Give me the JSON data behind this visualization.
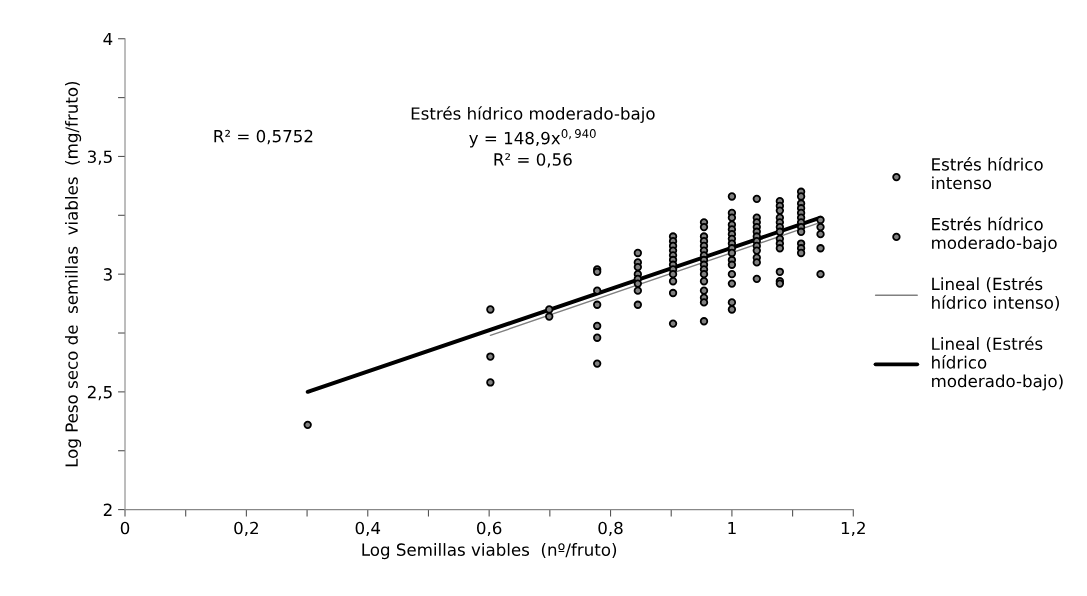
{
  "chart_data": {
    "type": "scatter",
    "xlabel": "Log Semillas viables  (nº/fruto)",
    "ylabel": "Log Peso seco de  semillas  viables  (mg/fruto)",
    "xlim": [
      0,
      1.2
    ],
    "ylim": [
      2,
      4
    ],
    "xticks": [
      0,
      {
        "value": 0.1,
        "label": null
      },
      {
        "value": 0.2,
        "label": "0,2"
      },
      {
        "value": 0.3,
        "label": null
      },
      {
        "value": 0.4,
        "label": "0,4"
      },
      {
        "value": 0.5,
        "label": null
      },
      {
        "value": 0.6,
        "label": "0,6"
      },
      {
        "value": 0.7,
        "label": null
      },
      {
        "value": 0.8,
        "label": "0,8"
      },
      {
        "value": 0.9,
        "label": null
      },
      1,
      {
        "value": 1.1,
        "label": null
      },
      {
        "value": 1.2,
        "label": "1,2"
      }
    ],
    "yticks": [
      2,
      {
        "value": 2.25,
        "label": null
      },
      {
        "value": 2.5,
        "label": "2,5"
      },
      {
        "value": 2.75,
        "label": null
      },
      3,
      {
        "value": 3.25,
        "label": null
      },
      {
        "value": 3.5,
        "label": "3,5"
      },
      {
        "value": 3.75,
        "label": null
      },
      4
    ],
    "grid": false,
    "legend": "right",
    "annotations": [
      "R² = 0,5752",
      "Estrés hídrico moderado-bajo\ny = 148,9x$^{0,940}$\nR² = 0,56"
    ],
    "series": [
      {
        "name": "Estrés hídrico\nintenso",
        "marker": "circle",
        "color": "#808080",
        "x": [
          0.602,
          0.602,
          0.602,
          0.699,
          0.699,
          0.778,
          0.778,
          0.778,
          0.778,
          0.778,
          0.778,
          0.778,
          0.845,
          0.845,
          0.845,
          0.845,
          0.845,
          0.845,
          0.845,
          0.845,
          0.903,
          0.903,
          0.903,
          0.903,
          0.903,
          0.903,
          0.903,
          0.903,
          0.903,
          0.903,
          0.903,
          0.903
        ],
        "values": [
          2.85,
          2.65,
          2.54,
          2.85,
          2.82,
          3.02,
          3.01,
          2.93,
          2.87,
          2.78,
          2.73,
          2.62,
          3.09,
          3.05,
          3.03,
          3.0,
          2.98,
          2.96,
          2.93,
          2.87,
          3.16,
          3.14,
          3.12,
          3.1,
          3.08,
          3.06,
          3.04,
          3.02,
          3.0,
          2.97,
          2.92,
          2.79
        ]
      },
      {
        "name": "Estrés hídrico\nmoderado-bajo",
        "marker": "circle",
        "color": "#808080",
        "x": [
          0.301,
          0.954,
          0.954,
          0.954,
          0.954,
          0.954,
          0.954,
          0.954,
          0.954,
          0.954,
          0.954,
          0.954,
          0.954,
          0.954,
          0.954,
          0.954,
          0.954,
          1.0,
          1.0,
          1.0,
          1.0,
          1.0,
          1.0,
          1.0,
          1.0,
          1.0,
          1.0,
          1.0,
          1.0,
          1.0,
          1.0,
          1.0,
          1.0,
          1.041,
          1.041,
          1.041,
          1.041,
          1.041,
          1.041,
          1.041,
          1.041,
          1.041,
          1.041,
          1.041,
          1.041,
          1.079,
          1.079,
          1.079,
          1.079,
          1.079,
          1.079,
          1.079,
          1.079,
          1.079,
          1.079,
          1.079,
          1.079,
          1.079,
          1.114,
          1.114,
          1.114,
          1.114,
          1.114,
          1.114,
          1.114,
          1.114,
          1.114,
          1.114,
          1.114,
          1.114,
          1.146,
          1.146,
          1.146,
          1.146,
          1.146
        ],
        "values": [
          2.36,
          3.22,
          3.2,
          3.16,
          3.14,
          3.12,
          3.1,
          3.08,
          3.06,
          3.04,
          3.02,
          3.0,
          2.97,
          2.93,
          2.9,
          2.88,
          2.8,
          3.33,
          3.26,
          3.24,
          3.21,
          3.19,
          3.17,
          3.15,
          3.13,
          3.11,
          3.09,
          3.06,
          3.04,
          3.0,
          2.96,
          2.88,
          2.85,
          3.32,
          3.24,
          3.22,
          3.2,
          3.18,
          3.16,
          3.14,
          3.12,
          3.1,
          3.07,
          3.05,
          2.98,
          3.31,
          3.29,
          3.27,
          3.24,
          3.22,
          3.2,
          3.18,
          3.15,
          3.13,
          3.11,
          3.01,
          2.97,
          2.96,
          3.35,
          3.33,
          3.3,
          3.28,
          3.26,
          3.24,
          3.22,
          3.2,
          3.18,
          3.13,
          3.11,
          3.09,
          3.23,
          3.2,
          3.17,
          3.11,
          3.0
        ]
      },
      {
        "name": "Lineal (Estrés\nhídrico intenso)",
        "type": "line",
        "color": "#808080",
        "x": [
          0.602,
          1.146
        ],
        "values": [
          2.74,
          3.22
        ]
      },
      {
        "name": "Lineal (Estrés\nhídrico\nmoderado-bajo)",
        "type": "line",
        "color": "#000000",
        "x": [
          0.301,
          1.146
        ],
        "values": [
          2.5,
          3.24
        ]
      }
    ]
  }
}
